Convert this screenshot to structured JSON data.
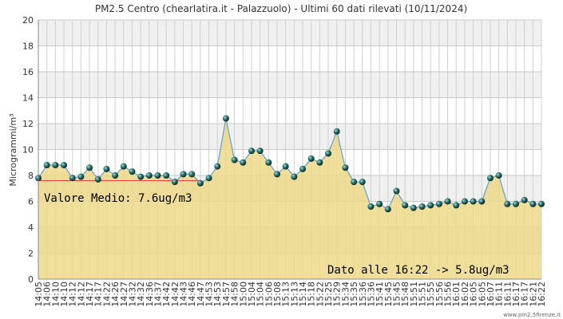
{
  "chart_data": {
    "type": "line",
    "title": "PM2.5 Centro (chearIatira.it - Palazzuolo) - Ultimi 60 dati rilevati (10/11/2024)",
    "y_label": "Microgrammi/m³",
    "categories": [
      "14:05",
      "14:06",
      "14:10",
      "14:10",
      "14:12",
      "14:12",
      "14:17",
      "14:17",
      "14:22",
      "14:26",
      "14:27",
      "14:32",
      "14:32",
      "14:36",
      "14:37",
      "14:42",
      "14:42",
      "14:43",
      "14:46",
      "14:47",
      "14:53",
      "14:53",
      "14:57",
      "14:58",
      "15:00",
      "15:04",
      "15:04",
      "15:06",
      "15:08",
      "15:13",
      "15:13",
      "15:14",
      "15:18",
      "15:22",
      "15:25",
      "15:29",
      "15:34",
      "15:35",
      "15:36",
      "15:36",
      "15:41",
      "15:45",
      "15:45",
      "15:48",
      "15:51",
      "15:51",
      "15:55",
      "15:56",
      "15:56",
      "16:01",
      "16:02",
      "16:05",
      "16:05",
      "16:07",
      "16:11",
      "16:11",
      "16:17",
      "16:17",
      "16:21",
      "16:22"
    ],
    "series": [
      {
        "name": "PM2.5",
        "color": "#6fa3c8",
        "fill": "#ecd98a",
        "values": [
          7.8,
          8.8,
          8.8,
          8.8,
          7.8,
          7.9,
          8.6,
          7.7,
          8.5,
          8.0,
          8.7,
          8.3,
          7.9,
          8.0,
          8.0,
          8.0,
          7.5,
          8.1,
          8.1,
          7.4,
          7.8,
          8.7,
          12.4,
          9.2,
          9.0,
          9.9,
          9.9,
          9.0,
          8.1,
          8.7,
          7.9,
          8.5,
          9.3,
          9.0,
          9.7,
          11.4,
          8.6,
          7.5,
          7.5,
          5.6,
          5.8,
          5.4,
          6.8,
          5.7,
          5.5,
          5.6,
          5.7,
          5.8,
          6.0,
          5.7,
          6.0,
          6.0,
          6.0,
          7.8,
          8.0,
          5.8,
          5.8,
          6.1,
          5.8,
          5.8
        ]
      }
    ],
    "average": 7.6,
    "average_label": "Valore Medio: 7.6ug/m3",
    "last_label": "Dato alle 16:22 -> 5.8ug/m3",
    "watermark": "www.pm2.5firenze.it",
    "ylim": [
      0,
      20
    ],
    "yticks": [
      0,
      2,
      4,
      6,
      8,
      10,
      12,
      14,
      16,
      18,
      20
    ],
    "grid": true
  }
}
